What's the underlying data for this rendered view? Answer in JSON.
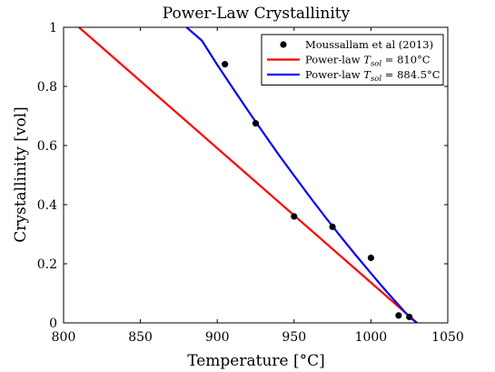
{
  "chart_data": {
    "type": "line",
    "title": "Power-Law Crystallinity",
    "xlabel": "Temperature [°C]",
    "ylabel": "Crystallinity [vol]",
    "xlim": [
      800,
      1050
    ],
    "ylim": [
      0,
      1
    ],
    "xticks": [
      800,
      850,
      900,
      950,
      1000,
      1050
    ],
    "yticks": [
      0,
      0.2,
      0.4,
      0.6,
      0.8,
      1
    ],
    "xtick_labels": [
      "800",
      "850",
      "900",
      "950",
      "1000",
      "1050"
    ],
    "ytick_labels": [
      "0",
      "0.2",
      "0.4",
      "0.6",
      "0.8",
      "1"
    ],
    "grid": false,
    "legend_position": "top-right",
    "series": [
      {
        "name": "Moussallam et al (2013)",
        "type": "scatter",
        "color": "#000000",
        "x": [
          905,
          925,
          950,
          975,
          1000,
          1018,
          1025
        ],
        "y": [
          0.875,
          0.675,
          0.36,
          0.325,
          0.22,
          0.025,
          0.02
        ]
      },
      {
        "name": "Power-law T_sol = 810°C",
        "legend_main": "Power-law ",
        "legend_var": "T",
        "legend_sub": "sol",
        "legend_eq": " = 810°C",
        "type": "line",
        "color": "#ff0000",
        "x": [
          810,
          1030
        ],
        "y": [
          1.0,
          0.0
        ]
      },
      {
        "name": "Power-law T_sol = 884.5°C",
        "legend_main": "Power-law ",
        "legend_var": "T",
        "legend_sub": "sol",
        "legend_eq": " = 884.5°C",
        "type": "line",
        "color": "#0000ff",
        "x": [
          880,
          890,
          900,
          910,
          920,
          930,
          940,
          950,
          960,
          970,
          980,
          990,
          1000,
          1010,
          1020,
          1025,
          1030
        ],
        "y": [
          1.0,
          0.955,
          0.873,
          0.795,
          0.718,
          0.643,
          0.569,
          0.498,
          0.428,
          0.36,
          0.294,
          0.23,
          0.168,
          0.107,
          0.049,
          0.02,
          0.0
        ]
      }
    ]
  }
}
